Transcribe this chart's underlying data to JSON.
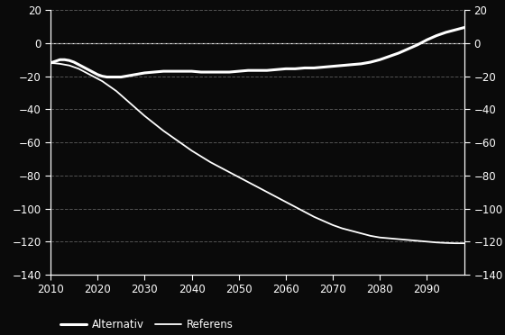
{
  "x_alternativ": [
    2010,
    2011,
    2012,
    2013,
    2014,
    2015,
    2016,
    2017,
    2018,
    2019,
    2020,
    2021,
    2022,
    2023,
    2024,
    2025,
    2026,
    2027,
    2028,
    2029,
    2030,
    2032,
    2034,
    2036,
    2038,
    2040,
    2042,
    2044,
    2046,
    2048,
    2050,
    2052,
    2054,
    2056,
    2058,
    2060,
    2062,
    2064,
    2066,
    2068,
    2070,
    2072,
    2074,
    2076,
    2078,
    2080,
    2082,
    2084,
    2086,
    2088,
    2090,
    2092,
    2094,
    2096,
    2098
  ],
  "y_alternativ": [
    -12,
    -11.0,
    -10.0,
    -10.0,
    -10.5,
    -11.5,
    -13.0,
    -14.5,
    -16.0,
    -17.5,
    -19.0,
    -20.0,
    -20.5,
    -20.5,
    -20.5,
    -20.5,
    -20.0,
    -19.5,
    -19.0,
    -18.5,
    -18.0,
    -17.5,
    -17.0,
    -17.0,
    -17.0,
    -17.0,
    -17.5,
    -17.5,
    -17.5,
    -17.5,
    -17.0,
    -16.5,
    -16.5,
    -16.5,
    -16.0,
    -15.5,
    -15.5,
    -15.0,
    -15.0,
    -14.5,
    -14.0,
    -13.5,
    -13.0,
    -12.5,
    -11.5,
    -10.0,
    -8.0,
    -6.0,
    -3.5,
    -1.0,
    2.0,
    4.5,
    6.5,
    8.0,
    9.5
  ],
  "x_referens": [
    2010,
    2011,
    2012,
    2013,
    2014,
    2015,
    2016,
    2017,
    2018,
    2019,
    2020,
    2021,
    2022,
    2023,
    2024,
    2025,
    2026,
    2027,
    2028,
    2029,
    2030,
    2032,
    2034,
    2036,
    2038,
    2040,
    2042,
    2044,
    2046,
    2048,
    2050,
    2052,
    2054,
    2056,
    2058,
    2060,
    2062,
    2064,
    2066,
    2068,
    2070,
    2072,
    2074,
    2076,
    2078,
    2080,
    2082,
    2084,
    2086,
    2088,
    2090,
    2092,
    2094,
    2096,
    2098
  ],
  "y_referens": [
    -12,
    -12.2,
    -12.5,
    -13.0,
    -13.5,
    -14.5,
    -15.5,
    -17.0,
    -18.5,
    -20.0,
    -21.5,
    -23.0,
    -25.0,
    -27.0,
    -29.0,
    -31.5,
    -34.0,
    -36.5,
    -39.0,
    -41.5,
    -44.0,
    -48.5,
    -53.0,
    -57.0,
    -61.0,
    -65.0,
    -68.5,
    -72.0,
    -75.0,
    -78.0,
    -81.0,
    -84.0,
    -87.0,
    -90.0,
    -93.0,
    -96.0,
    -99.0,
    -102.0,
    -105.0,
    -107.5,
    -110.0,
    -112.0,
    -113.5,
    -115.0,
    -116.5,
    -117.5,
    -118.0,
    -118.5,
    -119.0,
    -119.5,
    -120.0,
    -120.5,
    -120.8,
    -121.0,
    -121.0
  ],
  "background_color": "#0a0a0a",
  "line_color": "#ffffff",
  "grid_color": "#666666",
  "text_color": "#ffffff",
  "spine_color": "#ffffff",
  "ylim": [
    -140,
    20
  ],
  "xlim": [
    2010,
    2098
  ],
  "yticks": [
    20,
    0,
    -20,
    -40,
    -60,
    -80,
    -100,
    -120,
    -140
  ],
  "xticks": [
    2010,
    2020,
    2030,
    2040,
    2050,
    2060,
    2070,
    2080,
    2090
  ],
  "legend_alternativ": "Alternativ",
  "legend_referens": "Referens",
  "alternativ_linewidth": 2.2,
  "referens_linewidth": 1.3,
  "tick_fontsize": 8.5,
  "legend_fontsize": 8.5
}
